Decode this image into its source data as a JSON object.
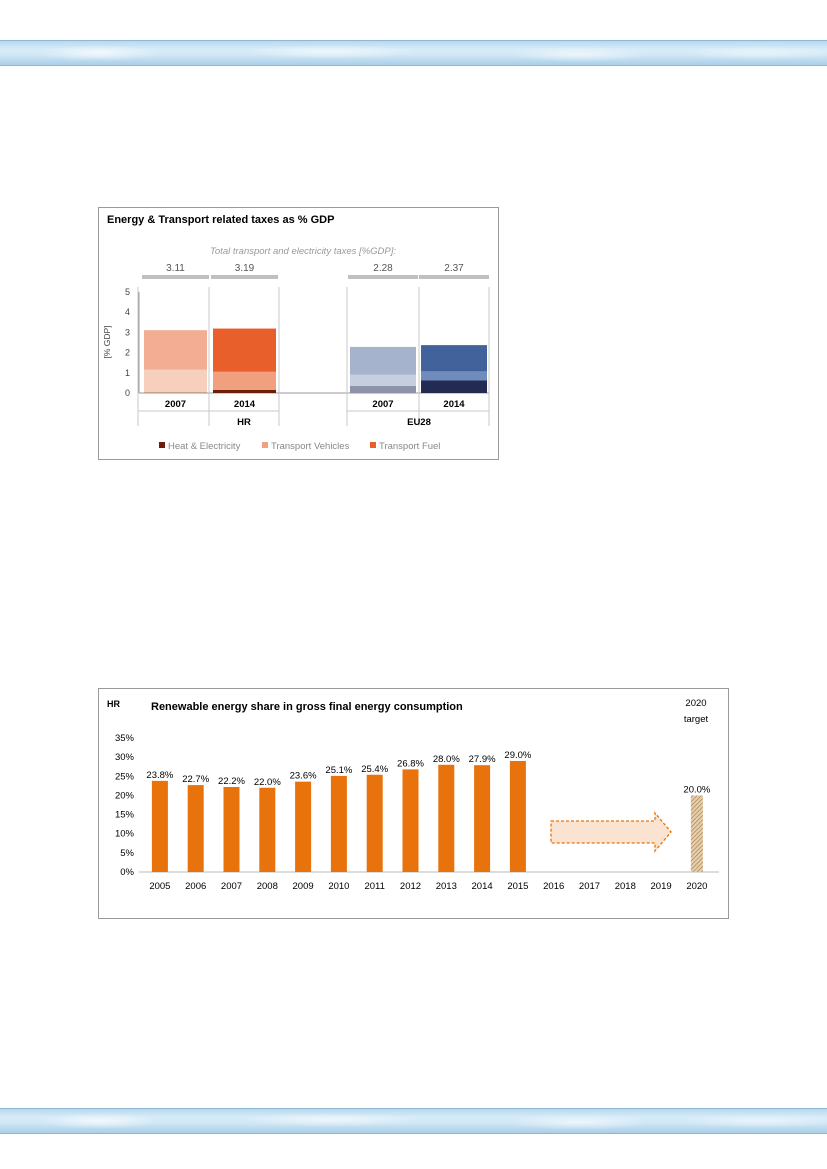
{
  "colors": {
    "band": "#c9e2f3",
    "hr_fuel_2007": "#f2ad93",
    "hr_vehicles_2007": "#f7cfbd",
    "hr_heat_2007": "#c9a08f",
    "hr_fuel_2014": "#e85f2c",
    "hr_vehicles_2014": "#f0a07f",
    "hr_heat_2014": "#6a1e0a",
    "eu_fuel_2007": "#a5b3cd",
    "eu_vehicles_2007": "#c6cfe0",
    "eu_heat_2007": "#8d93a8",
    "eu_fuel_2014": "#41629a",
    "eu_vehicles_2014": "#6f8cbd",
    "eu_heat_2014": "#232b52",
    "renewable_bar": "#e8720c",
    "target_bar": "#c8a070",
    "arrow_fill": "#fbe3d2",
    "arrow_stroke": "#e8720c"
  },
  "chart_data": [
    {
      "type": "bar",
      "stacked": true,
      "title": "Energy & Transport related taxes as % GDP",
      "subtitle": "Total transport and electricity taxes [%GDP]:",
      "ylabel": "[% GDP]",
      "ylim": [
        0,
        5
      ],
      "yticks": [
        "0",
        "1",
        "2",
        "3",
        "4",
        "5"
      ],
      "groups": [
        "HR",
        "EU28"
      ],
      "categories": [
        {
          "group": "HR",
          "label": "2007",
          "total_label": "3.11"
        },
        {
          "group": "HR",
          "label": "2014",
          "total_label": "3.19"
        },
        {
          "group": "EU28",
          "label": "2007",
          "total_label": "2.28"
        },
        {
          "group": "EU28",
          "label": "2014",
          "total_label": "2.37"
        }
      ],
      "series": [
        {
          "name": "Heat & Electricity",
          "values": [
            0.05,
            0.15,
            0.35,
            0.62
          ]
        },
        {
          "name": "Transport Vehicles",
          "values": [
            1.1,
            0.9,
            0.55,
            0.45
          ]
        },
        {
          "name": "Transport Fuel",
          "values": [
            1.96,
            2.14,
            1.38,
            1.3
          ]
        }
      ],
      "legend": "bottom"
    },
    {
      "type": "bar",
      "title": "Renewable energy share in gross final energy consumption",
      "region_label": "HR",
      "target_label_line1": "2020",
      "target_label_line2": "target",
      "ylim": [
        0,
        35
      ],
      "yticks": [
        "0%",
        "5%",
        "10%",
        "15%",
        "20%",
        "25%",
        "30%",
        "35%"
      ],
      "categories": [
        "2005",
        "2006",
        "2007",
        "2008",
        "2009",
        "2010",
        "2011",
        "2012",
        "2013",
        "2014",
        "2015",
        "2016",
        "2017",
        "2018",
        "2019",
        "2020"
      ],
      "values": [
        23.8,
        22.7,
        22.2,
        22.0,
        23.6,
        25.1,
        25.4,
        26.8,
        28.0,
        27.9,
        29.0,
        null,
        null,
        null,
        null,
        20.0
      ],
      "labels": [
        "23.8%",
        "22.7%",
        "22.2%",
        "22.0%",
        "23.6%",
        "25.1%",
        "25.4%",
        "26.8%",
        "28.0%",
        "27.9%",
        "29.0%",
        "",
        "",
        "",
        "",
        "20.0%"
      ],
      "target_index": 15
    }
  ]
}
